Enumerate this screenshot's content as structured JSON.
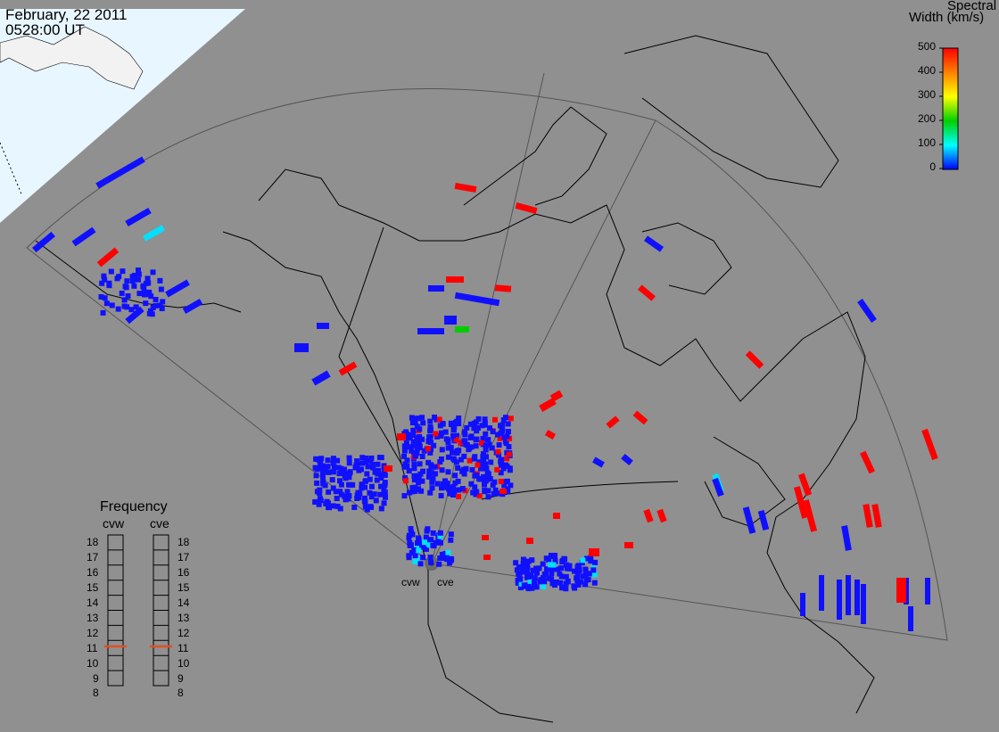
{
  "header": {
    "date": "February, 22 2011",
    "time": "0528:00 UT"
  },
  "colorbar": {
    "title_line1": "Spectral",
    "title_line2": "Width (km/s)",
    "ticks": [
      "500",
      "400",
      "300",
      "200",
      "100",
      "0"
    ],
    "colors": [
      "#ff0000",
      "#ff8000",
      "#ffff00",
      "#00d000",
      "#00ffff",
      "#0000ff"
    ]
  },
  "frequency": {
    "title": "Frequency",
    "radars": [
      "cvw",
      "cve"
    ],
    "ticks": [
      "18",
      "17",
      "16",
      "15",
      "14",
      "13",
      "12",
      "11",
      "10",
      "9",
      "8"
    ],
    "selected": {
      "cvw": 11,
      "cve": 11
    },
    "marker_color": "#e05020"
  },
  "map": {
    "background": "#909090",
    "ocean_day_color": "#e8f6ff",
    "radar_sites": [
      {
        "name": "cvw"
      },
      {
        "name": "cve"
      }
    ],
    "echo_colors": {
      "low": "#1010ff",
      "high": "#ff0000",
      "mid": "#00cc00",
      "aqua": "#00e0ff"
    }
  }
}
